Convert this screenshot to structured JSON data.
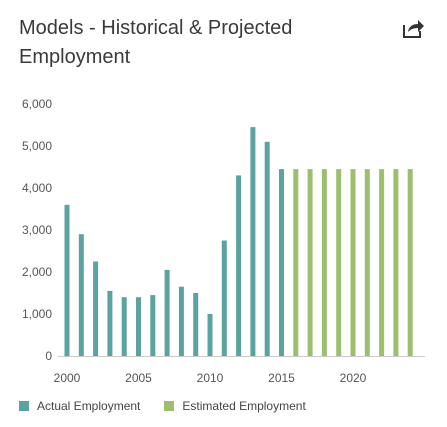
{
  "header": {
    "title": "Models - Historical & Projected Employment",
    "share_icon": "share-arrow-icon"
  },
  "colors": {
    "actual": "#5ba3a0",
    "estimated": "#9cbf6e",
    "axis": "#cccccc"
  },
  "legend": {
    "items": [
      {
        "label": "Actual Employment",
        "color": "#5ba3a0"
      },
      {
        "label": "Estimated Employment",
        "color": "#9cbf6e"
      }
    ]
  },
  "chart_data": {
    "type": "bar",
    "title": "Models - Historical & Projected Employment",
    "xlabel": "",
    "ylabel": "",
    "ylim": [
      0,
      6000
    ],
    "yticks": [
      "0",
      "1,000",
      "2,000",
      "3,000",
      "4,000",
      "5,000",
      "6,000"
    ],
    "xticks": [
      "2000",
      "2005",
      "2010",
      "2015",
      "2020"
    ],
    "grid": false,
    "legend_position": "bottom",
    "series": [
      {
        "name": "Actual Employment",
        "x": [
          2000,
          2001,
          2002,
          2003,
          2004,
          2005,
          2006,
          2007,
          2008,
          2009,
          2010,
          2011,
          2012,
          2013,
          2014,
          2015
        ],
        "values": [
          3600,
          2900,
          2250,
          1550,
          1400,
          1400,
          1450,
          2050,
          1650,
          1500,
          1000,
          2750,
          4300,
          5450,
          5100,
          4450
        ]
      },
      {
        "name": "Estimated Employment",
        "x": [
          2016,
          2017,
          2018,
          2019,
          2020,
          2021,
          2022,
          2023,
          2024
        ],
        "values": [
          4450,
          4450,
          4450,
          4450,
          4450,
          4450,
          4450,
          4450,
          4450
        ]
      }
    ]
  }
}
